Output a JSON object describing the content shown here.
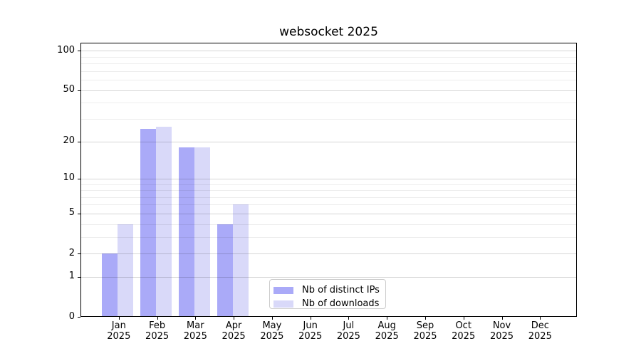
{
  "chart_data": {
    "type": "bar",
    "title": "websocket 2025",
    "categories": [
      "Jan",
      "Feb",
      "Mar",
      "Apr",
      "May",
      "Jun",
      "Jul",
      "Aug",
      "Sep",
      "Oct",
      "Nov",
      "Dec"
    ],
    "x_year_label": "2025",
    "series": [
      {
        "name": "Nb of distinct IPs",
        "color": "#aaaaf8",
        "values": [
          2,
          25,
          18,
          4,
          0,
          0,
          0,
          0,
          0,
          0,
          0,
          0
        ]
      },
      {
        "name": "Nb of downloads",
        "color": "#d9d9f9",
        "values": [
          4,
          26,
          18,
          6,
          0,
          0,
          0,
          0,
          0,
          0,
          0,
          0
        ]
      }
    ],
    "y_axis": {
      "scale": "log10(1+value)",
      "tick_values": [
        0,
        1,
        2,
        5,
        10,
        20,
        50,
        100
      ],
      "tick_labels": [
        "0",
        "1",
        "2",
        "5",
        "10",
        "20",
        "50",
        "100"
      ],
      "minor_tick_values": [
        3,
        4,
        6,
        7,
        8,
        9,
        30,
        40,
        60,
        70,
        80,
        90
      ],
      "ylim": [
        0,
        115
      ]
    },
    "legend": {
      "position": "inside-bottom-center-right"
    },
    "grid": true,
    "colors": {
      "background": "#ffffff",
      "spine": "#000000",
      "major_grid": "rgba(0,0,0,0.16)",
      "minor_grid": "rgba(0,0,0,0.07)",
      "text": "#000000"
    }
  }
}
